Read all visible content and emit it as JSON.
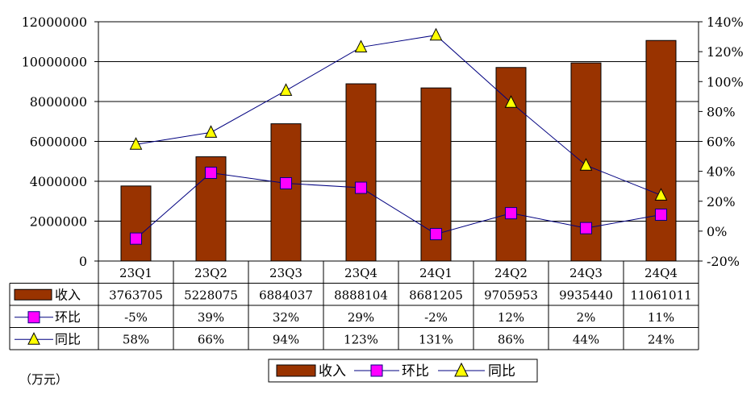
{
  "chart_data": {
    "type": "bar",
    "categories": [
      "23Q1",
      "23Q2",
      "23Q3",
      "23Q4",
      "24Q1",
      "24Q2",
      "24Q3",
      "24Q4"
    ],
    "series": [
      {
        "name": "收入",
        "type": "bar",
        "axis": "left",
        "values": [
          3763705,
          5228075,
          6884037,
          8888104,
          8681205,
          9705953,
          9935440,
          11061011
        ],
        "color": "#993300",
        "labels": [
          "3763705",
          "5228075",
          "6884037",
          "8888104",
          "8681205",
          "9705953",
          "9935440",
          "11061011"
        ]
      },
      {
        "name": "环比",
        "type": "line",
        "axis": "right",
        "values": [
          -5,
          39,
          32,
          29,
          -2,
          12,
          2,
          11
        ],
        "color": "#FF00FF",
        "line_color": "#000080",
        "marker": "square",
        "labels": [
          "-5%",
          "39%",
          "32%",
          "29%",
          "-2%",
          "12%",
          "2%",
          "11%"
        ]
      },
      {
        "name": "同比",
        "type": "line",
        "axis": "right",
        "values": [
          58,
          66,
          94,
          123,
          131,
          86,
          44,
          24
        ],
        "color": "#FFFF00",
        "line_color": "#000080",
        "marker": "triangle",
        "labels": [
          "58%",
          "66%",
          "94%",
          "123%",
          "131%",
          "86%",
          "44%",
          "24%"
        ]
      }
    ],
    "ylim_left": [
      0,
      12000000
    ],
    "yticks_left": [
      "0",
      "2000000",
      "4000000",
      "6000000",
      "8000000",
      "10000000",
      "12000000"
    ],
    "ylim_right": [
      -20,
      140
    ],
    "yticks_right": [
      "-20%",
      "0%",
      "20%",
      "40%",
      "60%",
      "80%",
      "100%",
      "120%",
      "140%"
    ],
    "grid": true,
    "data_table": true,
    "legend_position": "bottom-right",
    "unit_label": "（万元）"
  }
}
